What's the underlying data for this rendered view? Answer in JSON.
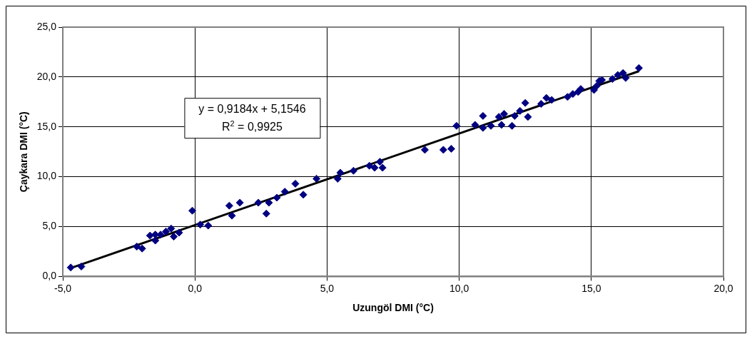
{
  "chart_data": {
    "type": "scatter",
    "xlabel": "Uzungöl DMI (°C)",
    "ylabel": "Çaykara DMI (°C)",
    "annotations": [
      "y = 0,9184x + 5,1546",
      "R$^{2}$ = 0,9925"
    ],
    "x": [
      -4.7,
      -4.3,
      -2.2,
      -2.0,
      -1.7,
      -1.5,
      -1.5,
      -1.3,
      -1.1,
      -0.9,
      -0.8,
      -0.6,
      -0.1,
      0.2,
      0.5,
      1.3,
      1.4,
      1.7,
      2.4,
      2.7,
      2.8,
      3.1,
      3.4,
      3.8,
      4.1,
      4.6,
      5.4,
      5.5,
      6.0,
      6.6,
      6.8,
      7.0,
      7.1,
      8.7,
      9.4,
      9.7,
      9.9,
      10.6,
      10.9,
      10.9,
      11.2,
      11.5,
      11.6,
      11.7,
      12.0,
      12.1,
      12.3,
      12.5,
      12.6,
      13.1,
      13.3,
      13.5,
      14.1,
      14.3,
      14.5,
      14.6,
      15.1,
      15.2,
      15.3,
      15.4,
      15.8,
      16.0,
      16.2,
      16.3,
      16.8
    ],
    "series": [
      {
        "color": "#000080",
        "marker": "diamond",
        "values": [
          0.9,
          1.0,
          3.0,
          2.8,
          4.1,
          4.2,
          3.6,
          4.2,
          4.5,
          4.8,
          4.0,
          4.4,
          6.6,
          5.2,
          5.1,
          7.1,
          6.1,
          7.4,
          7.4,
          6.3,
          7.4,
          7.9,
          8.5,
          9.3,
          8.2,
          9.8,
          9.8,
          10.4,
          10.6,
          11.1,
          10.9,
          11.5,
          10.9,
          12.7,
          12.7,
          12.8,
          15.1,
          15.2,
          14.9,
          16.1,
          15.1,
          16.0,
          15.2,
          16.3,
          15.1,
          16.1,
          16.6,
          17.4,
          16.0,
          17.3,
          17.9,
          17.7,
          18.0,
          18.3,
          18.5,
          18.8,
          18.7,
          19.1,
          19.6,
          19.7,
          19.8,
          20.2,
          20.4,
          19.9,
          20.9
        ]
      },
      {
        "type": "line",
        "color": "#000000",
        "marker": "none",
        "x": [
          -4.7,
          16.8
        ],
        "values": [
          0.84,
          20.58
        ]
      }
    ],
    "xlim": [
      -5,
      20
    ],
    "xticks": [
      {
        "value": -5,
        "label": "-5,0"
      },
      {
        "value": 0,
        "label": "0,0"
      },
      {
        "value": 5,
        "label": "5,0"
      },
      {
        "value": 10,
        "label": "10,0"
      },
      {
        "value": 15,
        "label": "15,0"
      },
      {
        "value": 20,
        "label": "20,0"
      }
    ],
    "ylim": [
      0,
      25
    ],
    "yticks": [
      {
        "value": 0,
        "label": "0,0"
      },
      {
        "value": 5,
        "label": "5,0"
      },
      {
        "value": 10,
        "label": "10,0"
      },
      {
        "value": 15,
        "label": "15,0"
      },
      {
        "value": 20,
        "label": "20,0"
      },
      {
        "value": 25,
        "label": "25,0"
      }
    ],
    "grid": true,
    "legend": false
  }
}
